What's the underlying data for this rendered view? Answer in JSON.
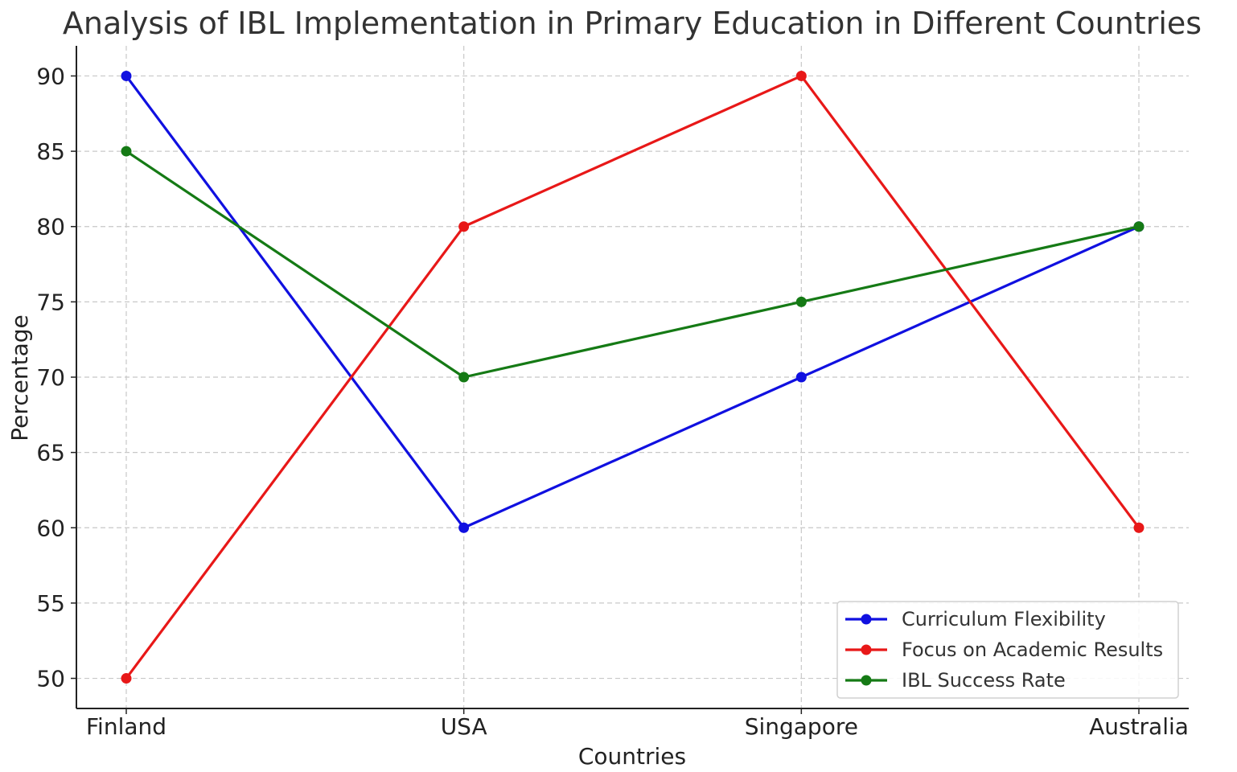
{
  "chart_data": {
    "type": "line",
    "title": "Analysis of IBL Implementation in Primary Education in Different Countries",
    "xlabel": "Countries",
    "ylabel": "Percentage",
    "categories": [
      "Finland",
      "USA",
      "Singapore",
      "Australia"
    ],
    "ylim": [
      48,
      92
    ],
    "yticks": [
      50,
      55,
      60,
      65,
      70,
      75,
      80,
      85,
      90
    ],
    "grid": true,
    "legend_position": "bottom-right",
    "series": [
      {
        "name": "Curriculum Flexibility",
        "values": [
          90,
          60,
          70,
          80
        ],
        "color": "#1010e0"
      },
      {
        "name": "Focus on Academic Results",
        "values": [
          50,
          80,
          90,
          60
        ],
        "color": "#e81818"
      },
      {
        "name": "IBL Success Rate",
        "values": [
          85,
          70,
          75,
          80
        ],
        "color": "#157a15"
      }
    ]
  }
}
